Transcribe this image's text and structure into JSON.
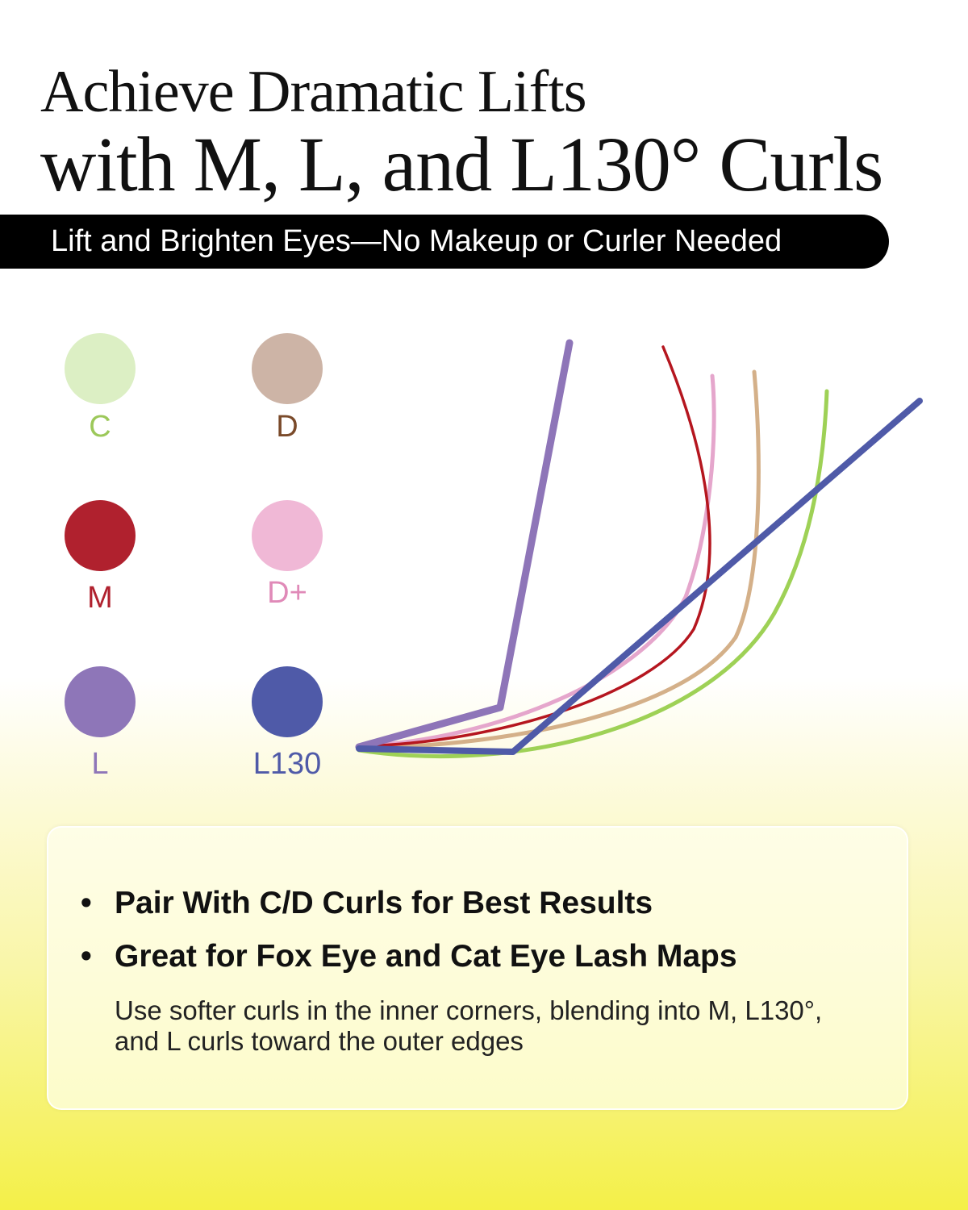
{
  "header": {
    "title_line1": "Achieve Dramatic Lifts",
    "title_line2": "with M, L, and L130° Curls"
  },
  "banner": {
    "text": "Lift and Brighten Eyes—No Makeup or Curler Needed"
  },
  "curls": [
    {
      "label": "C",
      "color": "#dcefc4",
      "text_color": "#9cc85a",
      "line_color": "#9ed156"
    },
    {
      "label": "D",
      "color": "#cdb4a6",
      "text_color": "#7a4a2a",
      "line_color": "#d4b089"
    },
    {
      "label": "M",
      "color": "#b0212e",
      "text_color": "#b0212e",
      "line_color": "#b5161f"
    },
    {
      "label": "D+",
      "color": "#f0b8d6",
      "text_color": "#e08ab8",
      "line_color": "#e5a6cc"
    },
    {
      "label": "L",
      "color": "#8e76b8",
      "text_color": "#8e76b8",
      "line_color": "#8e75b8"
    },
    {
      "label": "L130",
      "color": "#4f5aa8",
      "text_color": "#4f5aa8",
      "line_color": "#4f5aa8"
    }
  ],
  "card": {
    "bullets": [
      "Pair With C/D Curls for Best Results",
      "Great for Fox Eye and Cat Eye Lash Maps"
    ],
    "bullet_symbol": "•",
    "note": "Use softer curls in the inner corners, blending into M, L130°, and L curls toward the outer edges"
  }
}
